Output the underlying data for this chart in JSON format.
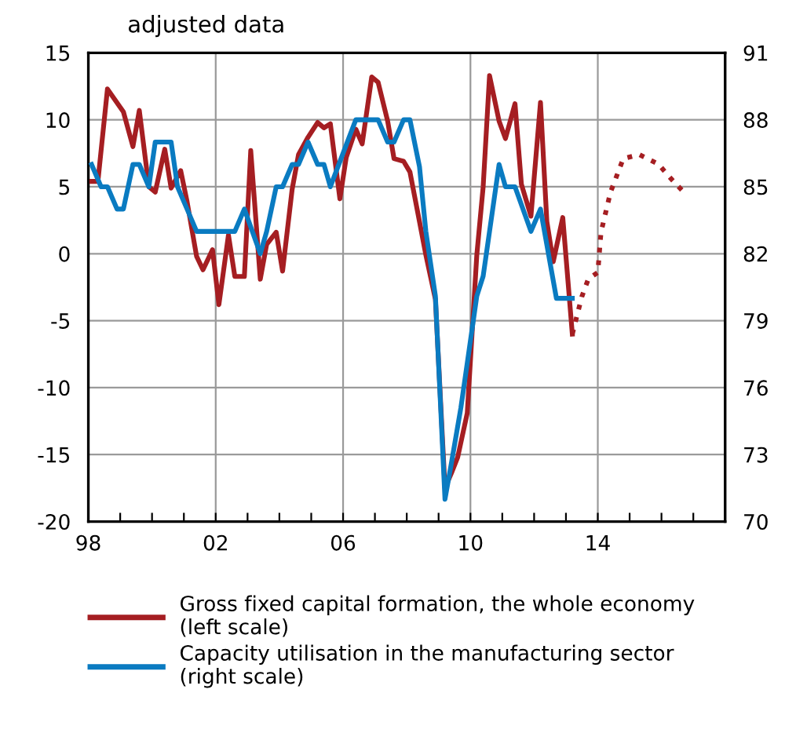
{
  "chart_data": {
    "type": "line",
    "title": "adjusted data",
    "xlim": [
      1998,
      2018
    ],
    "xticks": [
      {
        "value": 1998,
        "label": "98"
      },
      {
        "value": 1999,
        "label": null
      },
      {
        "value": 2000,
        "label": null
      },
      {
        "value": 2001,
        "label": null
      },
      {
        "value": 2002,
        "label": "02"
      },
      {
        "value": 2003,
        "label": null
      },
      {
        "value": 2004,
        "label": null
      },
      {
        "value": 2005,
        "label": null
      },
      {
        "value": 2006,
        "label": "06"
      },
      {
        "value": 2007,
        "label": null
      },
      {
        "value": 2008,
        "label": null
      },
      {
        "value": 2009,
        "label": null
      },
      {
        "value": 2010,
        "label": "10"
      },
      {
        "value": 2011,
        "label": null
      },
      {
        "value": 2012,
        "label": null
      },
      {
        "value": 2013,
        "label": null
      },
      {
        "value": 2014,
        "label": "14"
      },
      {
        "value": 2015,
        "label": null
      },
      {
        "value": 2016,
        "label": null
      },
      {
        "value": 2017,
        "label": null
      },
      {
        "value": 2018,
        "label": null
      }
    ],
    "ylim": [
      -20,
      15
    ],
    "yticks": [
      -20,
      -15,
      -10,
      -5,
      0,
      5,
      10,
      15
    ],
    "y2lim": [
      70,
      91
    ],
    "y2ticks": [
      70,
      73,
      76,
      79,
      82,
      85,
      88,
      91
    ],
    "grid": true,
    "legend": "bottom",
    "series": [
      {
        "name": "Gross fixed capital formation, the whole economy (left scale)",
        "color": "#a51e22",
        "line_style": "solid",
        "x": [
          1998.1,
          1998.3,
          1998.6,
          1999.1,
          1999.4,
          1999.6,
          1999.9,
          2000.1,
          2000.4,
          2000.6,
          2000.9,
          2001.1,
          2001.4,
          2001.6,
          2001.9,
          2002.1,
          2002.4,
          2002.6,
          2002.9,
          2003.1,
          2003.4,
          2003.6,
          2003.9,
          2004.1,
          2004.4,
          2004.6,
          2004.9,
          2005.2,
          2005.4,
          2005.6,
          2005.9,
          2006.1,
          2006.4,
          2006.6,
          2006.9,
          2007.1,
          2007.4,
          2007.6,
          2007.9,
          2008.1,
          2008.4,
          2008.6,
          2008.9,
          2009.2,
          2009.4,
          2009.6,
          2009.9,
          2010.2,
          2010.4,
          2010.6,
          2010.9,
          2011.1,
          2011.4,
          2011.6,
          2011.9,
          2012.2,
          2012.4,
          2012.6,
          2012.9,
          2013.2
        ],
        "values": [
          5.4,
          5.4,
          12.3,
          10.6,
          8.0,
          10.7,
          5.0,
          4.6,
          7.8,
          4.9,
          6.2,
          3.9,
          -0.2,
          -1.2,
          0.3,
          -3.8,
          1.4,
          -1.7,
          -1.7,
          7.7,
          -1.9,
          0.7,
          1.6,
          -1.3,
          4.8,
          7.4,
          8.7,
          9.8,
          9.4,
          9.7,
          4.1,
          7.2,
          9.3,
          8.2,
          13.2,
          12.8,
          9.9,
          7.1,
          6.9,
          6.1,
          2.4,
          -0.1,
          -3.4,
          -17.5,
          -16.4,
          -15.2,
          -11.9,
          -0.1,
          5.0,
          13.3,
          9.9,
          8.6,
          11.2,
          5.2,
          2.8,
          11.3,
          2.4,
          -0.6,
          2.7,
          -6.0
        ]
      },
      {
        "color": "#a51e22",
        "line_style": "dotted",
        "x": [
          2013.2,
          2013.5,
          2013.7,
          2014.0,
          2014.1,
          2014.4,
          2014.8,
          2015.3,
          2015.9,
          2016.3,
          2016.7
        ],
        "values": [
          -6.0,
          -3.2,
          -1.9,
          -1.4,
          1.6,
          4.6,
          7.1,
          7.4,
          6.7,
          5.6,
          4.6
        ]
      },
      {
        "name": "Capacity utilisation in the manufacturing sector (right scale)",
        "color": "#0a7bc1",
        "line_style": "solid",
        "axis": "y2",
        "x": [
          1998.1,
          1998.4,
          1998.6,
          1998.9,
          1999.1,
          1999.4,
          1999.6,
          1999.9,
          2000.1,
          2000.6,
          2000.8,
          2001.1,
          2001.4,
          2002.6,
          2002.9,
          2003.4,
          2003.6,
          2003.9,
          2004.1,
          2004.4,
          2004.6,
          2004.9,
          2005.2,
          2005.4,
          2005.6,
          2006.4,
          2007.1,
          2007.4,
          2007.6,
          2007.9,
          2008.1,
          2008.4,
          2008.6,
          2008.9,
          2009.2,
          2009.4,
          2009.7,
          2009.9,
          2010.2,
          2010.4,
          2010.6,
          2010.9,
          2011.1,
          2011.4,
          2011.9,
          2012.2,
          2012.7,
          2013.2
        ],
        "values": [
          86,
          85,
          85,
          84,
          84,
          86,
          86,
          85,
          87,
          87,
          85,
          84,
          83,
          83,
          84,
          82,
          83,
          85,
          85,
          86,
          86,
          87,
          86,
          86,
          85,
          88,
          88,
          87,
          87,
          88,
          88,
          85.9,
          83,
          80.1,
          71,
          72.6,
          75.1,
          77.1,
          80.1,
          81,
          83,
          86,
          85,
          85,
          83,
          84,
          80,
          80
        ]
      }
    ]
  }
}
